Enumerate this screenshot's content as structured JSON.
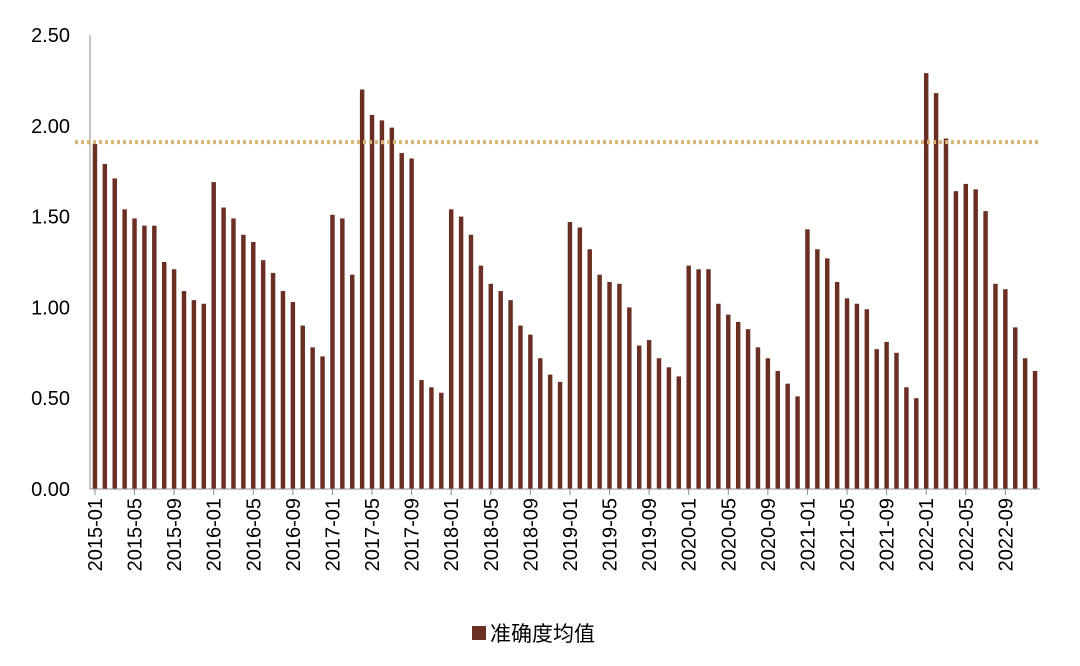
{
  "chart_data": {
    "type": "bar",
    "title": "",
    "xlabel": "",
    "ylabel": "",
    "ylim": [
      0,
      2.5
    ],
    "yticks": [
      "0.00",
      "0.50",
      "1.00",
      "1.50",
      "2.00",
      "2.50"
    ],
    "grid": false,
    "legend_position": "bottom",
    "bar_color": "#6b2e22",
    "reference_line": {
      "y": 1.91,
      "color": "#d9b37a",
      "style": "dotted"
    },
    "categories": [
      "2015-01",
      "2015-02",
      "2015-03",
      "2015-04",
      "2015-05",
      "2015-06",
      "2015-07",
      "2015-08",
      "2015-09",
      "2015-10",
      "2015-11",
      "2015-12",
      "2016-01",
      "2016-02",
      "2016-03",
      "2016-04",
      "2016-05",
      "2016-06",
      "2016-07",
      "2016-08",
      "2016-09",
      "2016-10",
      "2016-11",
      "2016-12",
      "2017-01",
      "2017-02",
      "2017-03",
      "2017-04",
      "2017-05",
      "2017-06",
      "2017-07",
      "2017-08",
      "2017-09",
      "2017-10",
      "2017-11",
      "2017-12",
      "2018-01",
      "2018-02",
      "2018-03",
      "2018-04",
      "2018-05",
      "2018-06",
      "2018-07",
      "2018-08",
      "2018-09",
      "2018-10",
      "2018-11",
      "2018-12",
      "2019-01",
      "2019-02",
      "2019-03",
      "2019-04",
      "2019-05",
      "2019-06",
      "2019-07",
      "2019-08",
      "2019-09",
      "2019-10",
      "2019-11",
      "2019-12",
      "2020-01",
      "2020-02",
      "2020-03",
      "2020-04",
      "2020-05",
      "2020-06",
      "2020-07",
      "2020-08",
      "2020-09",
      "2020-10",
      "2020-11",
      "2020-12",
      "2021-01",
      "2021-02",
      "2021-03",
      "2021-04",
      "2021-05",
      "2021-06",
      "2021-07",
      "2021-08",
      "2021-09",
      "2021-10",
      "2021-11",
      "2021-12",
      "2022-01",
      "2022-02",
      "2022-03",
      "2022-04",
      "2022-05",
      "2022-06",
      "2022-07",
      "2022-08",
      "2022-09",
      "2022-10",
      "2022-11",
      "2022-12"
    ],
    "xtick_labels": [
      "2015-01",
      "2015-05",
      "2015-09",
      "2016-01",
      "2016-05",
      "2016-09",
      "2017-01",
      "2017-05",
      "2017-09",
      "2018-01",
      "2018-05",
      "2018-09",
      "2019-01",
      "2019-05",
      "2019-09",
      "2020-01",
      "2020-05",
      "2020-09",
      "2021-01",
      "2021-05",
      "2021-09",
      "2022-01",
      "2022-05",
      "2022-09"
    ],
    "series": [
      {
        "name": "准确度均值",
        "values": [
          1.9,
          1.79,
          1.71,
          1.54,
          1.49,
          1.45,
          1.45,
          1.25,
          1.21,
          1.09,
          1.04,
          1.02,
          1.69,
          1.55,
          1.49,
          1.4,
          1.36,
          1.26,
          1.19,
          1.09,
          1.03,
          0.9,
          0.78,
          0.73,
          1.51,
          1.49,
          1.18,
          2.2,
          2.06,
          2.03,
          1.99,
          1.85,
          1.82,
          0.6,
          0.56,
          0.53,
          1.54,
          1.5,
          1.4,
          1.23,
          1.13,
          1.09,
          1.04,
          0.9,
          0.85,
          0.72,
          0.63,
          0.59,
          1.47,
          1.44,
          1.32,
          1.18,
          1.14,
          1.13,
          1.0,
          0.79,
          0.82,
          0.72,
          0.67,
          0.62,
          1.23,
          1.21,
          1.21,
          1.02,
          0.96,
          0.92,
          0.88,
          0.78,
          0.72,
          0.65,
          0.58,
          0.51,
          1.43,
          1.32,
          1.27,
          1.14,
          1.05,
          1.02,
          0.99,
          0.77,
          0.81,
          0.75,
          0.56,
          0.5,
          2.29,
          2.18,
          1.93,
          1.64,
          1.68,
          1.65,
          1.53,
          1.13,
          1.1,
          0.89,
          0.72,
          0.65
        ]
      }
    ]
  }
}
